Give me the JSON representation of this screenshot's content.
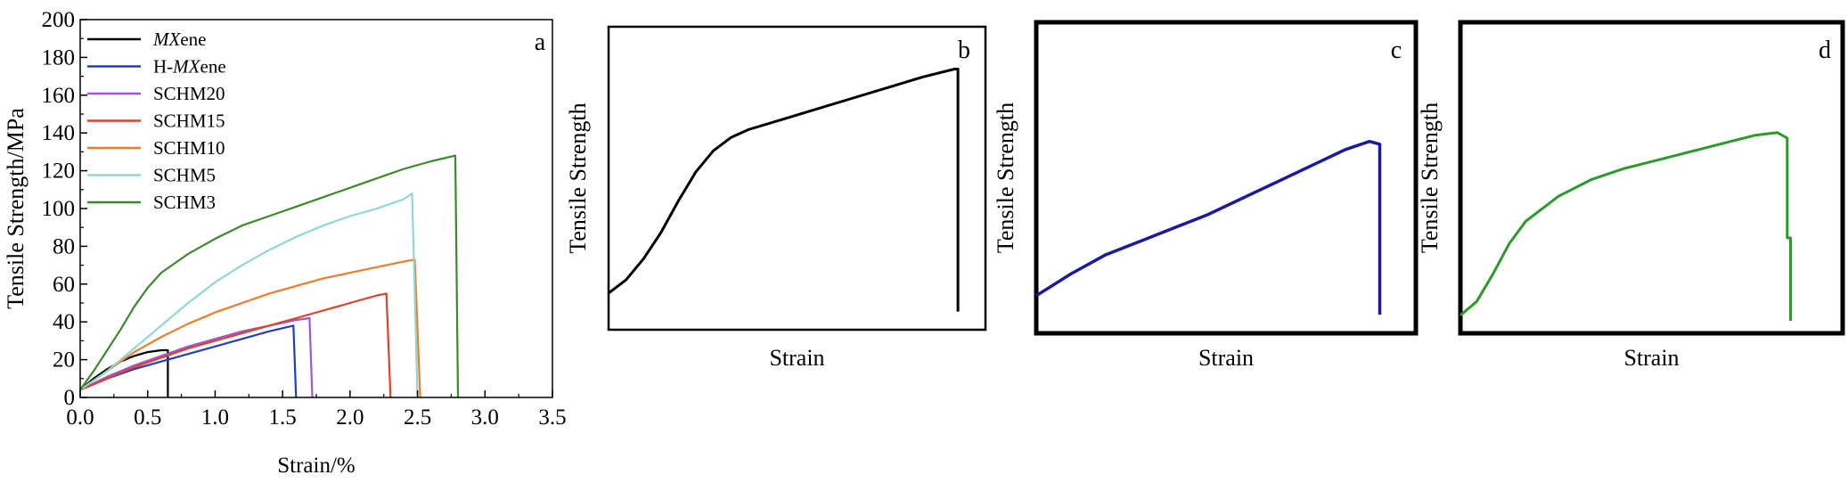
{
  "chart_data": [
    {
      "panel": "a",
      "type": "line",
      "xlabel": "Strain/%",
      "ylabel": "Tensile Strength/MPa",
      "xlim": [
        0,
        3.5
      ],
      "ylim": [
        0,
        200
      ],
      "xticks": [
        0.0,
        0.5,
        1.0,
        1.5,
        2.0,
        2.5,
        3.0,
        3.5
      ],
      "xtick_labels": [
        "0.0",
        "0.5",
        "1.0",
        "1.5",
        "2.0",
        "2.5",
        "3.0",
        "3.5"
      ],
      "yticks": [
        0,
        20,
        40,
        60,
        80,
        100,
        120,
        140,
        160,
        180,
        200
      ],
      "ytick_labels": [
        "0",
        "20",
        "40",
        "60",
        "80",
        "100",
        "120",
        "140",
        "160",
        "180",
        "200"
      ],
      "grid": false,
      "legend": "top-left",
      "series": [
        {
          "name": "MXene",
          "legend_parts": [
            {
              "text": "MX",
              "italic": true
            },
            {
              "text": "ene",
              "italic": false
            }
          ],
          "color": "#000000",
          "points": [
            [
              0,
              4
            ],
            [
              0.1,
              10
            ],
            [
              0.2,
              15
            ],
            [
              0.3,
              19
            ],
            [
              0.4,
              22
            ],
            [
              0.5,
              24
            ],
            [
              0.6,
              25
            ],
            [
              0.65,
              25
            ],
            [
              0.65,
              0
            ]
          ]
        },
        {
          "name": "H-MXene",
          "legend_parts": [
            {
              "text": "H-",
              "italic": false
            },
            {
              "text": "MX",
              "italic": true
            },
            {
              "text": "ene",
              "italic": false
            }
          ],
          "color": "#1f3fbf",
          "points": [
            [
              0,
              4
            ],
            [
              0.2,
              10
            ],
            [
              0.4,
              15
            ],
            [
              0.6,
              19
            ],
            [
              0.8,
              23
            ],
            [
              1.0,
              27
            ],
            [
              1.2,
              31
            ],
            [
              1.4,
              35
            ],
            [
              1.58,
              38
            ],
            [
              1.6,
              0
            ]
          ]
        },
        {
          "name": "SCHM20",
          "legend_parts": [
            {
              "text": "SCHM20",
              "italic": false
            }
          ],
          "color": "#9b59d0",
          "points": [
            [
              0,
              4
            ],
            [
              0.2,
              11
            ],
            [
              0.4,
              17
            ],
            [
              0.6,
              22
            ],
            [
              0.8,
              27
            ],
            [
              1.0,
              31
            ],
            [
              1.2,
              35
            ],
            [
              1.4,
              38
            ],
            [
              1.6,
              41
            ],
            [
              1.7,
              42
            ],
            [
              1.72,
              0
            ]
          ]
        },
        {
          "name": "SCHM15",
          "legend_parts": [
            {
              "text": "SCHM15",
              "italic": false
            }
          ],
          "color": "#e0402a",
          "points": [
            [
              0,
              4
            ],
            [
              0.2,
              10
            ],
            [
              0.4,
              16
            ],
            [
              0.6,
              21
            ],
            [
              0.8,
              26
            ],
            [
              1.0,
              30
            ],
            [
              1.2,
              34
            ],
            [
              1.4,
              38
            ],
            [
              1.6,
              42
            ],
            [
              1.8,
              46
            ],
            [
              2.0,
              50
            ],
            [
              2.2,
              54
            ],
            [
              2.27,
              55
            ],
            [
              2.3,
              0
            ]
          ]
        },
        {
          "name": "SCHM10",
          "legend_parts": [
            {
              "text": "SCHM10",
              "italic": false
            }
          ],
          "color": "#f07c2a",
          "points": [
            [
              0,
              4
            ],
            [
              0.2,
              14
            ],
            [
              0.4,
              24
            ],
            [
              0.6,
              32
            ],
            [
              0.8,
              39
            ],
            [
              1.0,
              45
            ],
            [
              1.2,
              50
            ],
            [
              1.4,
              55
            ],
            [
              1.6,
              59
            ],
            [
              1.8,
              63
            ],
            [
              2.0,
              66
            ],
            [
              2.2,
              69
            ],
            [
              2.4,
              72
            ],
            [
              2.48,
              73
            ],
            [
              2.52,
              0
            ]
          ]
        },
        {
          "name": "SCHM5",
          "legend_parts": [
            {
              "text": "SCHM5",
              "italic": false
            }
          ],
          "color": "#8fd8d2",
          "points": [
            [
              0,
              4
            ],
            [
              0.2,
              14
            ],
            [
              0.4,
              26
            ],
            [
              0.6,
              38
            ],
            [
              0.8,
              50
            ],
            [
              1.0,
              61
            ],
            [
              1.2,
              70
            ],
            [
              1.4,
              78
            ],
            [
              1.6,
              85
            ],
            [
              1.8,
              91
            ],
            [
              2.0,
              96
            ],
            [
              2.2,
              100
            ],
            [
              2.4,
              105
            ],
            [
              2.46,
              108
            ],
            [
              2.5,
              0
            ]
          ]
        },
        {
          "name": "SCHM3",
          "legend_parts": [
            {
              "text": "SCHM3",
              "italic": false
            }
          ],
          "color": "#3a8a2a",
          "points": [
            [
              0,
              4
            ],
            [
              0.1,
              14
            ],
            [
              0.2,
              25
            ],
            [
              0.3,
              36
            ],
            [
              0.4,
              48
            ],
            [
              0.5,
              58
            ],
            [
              0.6,
              66
            ],
            [
              0.8,
              76
            ],
            [
              1.0,
              84
            ],
            [
              1.2,
              91
            ],
            [
              1.4,
              96
            ],
            [
              1.6,
              101
            ],
            [
              1.8,
              106
            ],
            [
              2.0,
              111
            ],
            [
              2.2,
              116
            ],
            [
              2.4,
              121
            ],
            [
              2.6,
              125
            ],
            [
              2.78,
              128
            ],
            [
              2.8,
              0
            ]
          ]
        }
      ]
    },
    {
      "panel": "b",
      "type": "line",
      "xlabel": "Strain",
      "ylabel": "Tensile Strength",
      "color": "#000000",
      "points": [
        [
          0,
          0.07
        ],
        [
          0.05,
          0.12
        ],
        [
          0.1,
          0.2
        ],
        [
          0.15,
          0.3
        ],
        [
          0.2,
          0.42
        ],
        [
          0.25,
          0.53
        ],
        [
          0.3,
          0.61
        ],
        [
          0.35,
          0.66
        ],
        [
          0.4,
          0.69
        ],
        [
          0.5,
          0.73
        ],
        [
          0.6,
          0.77
        ],
        [
          0.7,
          0.81
        ],
        [
          0.8,
          0.85
        ],
        [
          0.9,
          0.89
        ],
        [
          0.99,
          0.92
        ],
        [
          1.0,
          0.92
        ],
        [
          1.0,
          0
        ]
      ]
    },
    {
      "panel": "c",
      "type": "line",
      "xlabel": "Strain",
      "ylabel": "Tensile Strength",
      "color": "#1a1aa0",
      "points": [
        [
          0,
          0.07
        ],
        [
          0.1,
          0.15
        ],
        [
          0.2,
          0.22
        ],
        [
          0.3,
          0.27
        ],
        [
          0.4,
          0.32
        ],
        [
          0.5,
          0.37
        ],
        [
          0.6,
          0.43
        ],
        [
          0.7,
          0.49
        ],
        [
          0.8,
          0.55
        ],
        [
          0.9,
          0.61
        ],
        [
          0.97,
          0.64
        ],
        [
          1.0,
          0.63
        ],
        [
          1.0,
          0
        ]
      ]
    },
    {
      "panel": "d",
      "type": "line",
      "xlabel": "Strain",
      "ylabel": "Tensile Strength",
      "color": "#2a9a2a",
      "points": [
        [
          0,
          0.02
        ],
        [
          0.05,
          0.07
        ],
        [
          0.1,
          0.17
        ],
        [
          0.15,
          0.28
        ],
        [
          0.2,
          0.36
        ],
        [
          0.3,
          0.45
        ],
        [
          0.4,
          0.51
        ],
        [
          0.5,
          0.55
        ],
        [
          0.6,
          0.58
        ],
        [
          0.7,
          0.61
        ],
        [
          0.8,
          0.64
        ],
        [
          0.9,
          0.67
        ],
        [
          0.97,
          0.68
        ],
        [
          1.0,
          0.66
        ],
        [
          1.0,
          0.3
        ],
        [
          1.01,
          0.3
        ],
        [
          1.01,
          0
        ]
      ]
    }
  ]
}
